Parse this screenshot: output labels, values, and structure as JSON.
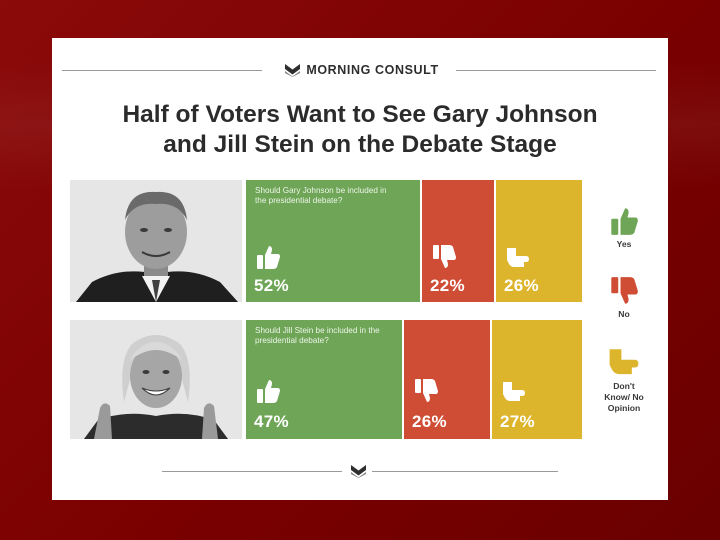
{
  "brand": {
    "name": "MORNING CONSULT",
    "logo_icon": "morning-consult-chevron-logo"
  },
  "title_lines": [
    "Half of Voters Want to See Gary Johnson",
    "and Jill Stein on the Debate Stage"
  ],
  "colors": {
    "yes": "#6ea556",
    "no": "#cf4c35",
    "dont_know": "#ddb52c",
    "text": "#2b2b2b"
  },
  "icons": {
    "yes": "thumbs-up-icon",
    "no": "thumbs-down-icon",
    "dont_know": "thumb-sideways-icon"
  },
  "legend": {
    "yes": "Yes",
    "no": "No",
    "dont_know": [
      "Don't",
      "Know/ No",
      "Opinion"
    ]
  },
  "chart_data": {
    "type": "bar",
    "title": "Half of Voters Want to See Gary Johnson and Jill Stein on the Debate Stage",
    "orientation": "horizontal-stacked-100",
    "legend_position": "right",
    "categories": [
      "Should Gary Johnson be included in the presidential debate?",
      "Should Jill Stein be included in the presidential debate?"
    ],
    "series": [
      {
        "name": "Yes",
        "values": [
          52,
          47
        ],
        "labels": [
          "52%",
          "47%"
        ]
      },
      {
        "name": "No",
        "values": [
          22,
          26
        ],
        "labels": [
          "22%",
          "26%"
        ]
      },
      {
        "name": "Don't Know/ No Opinion",
        "values": [
          26,
          27
        ],
        "labels": [
          "26%",
          "27%"
        ]
      }
    ]
  }
}
